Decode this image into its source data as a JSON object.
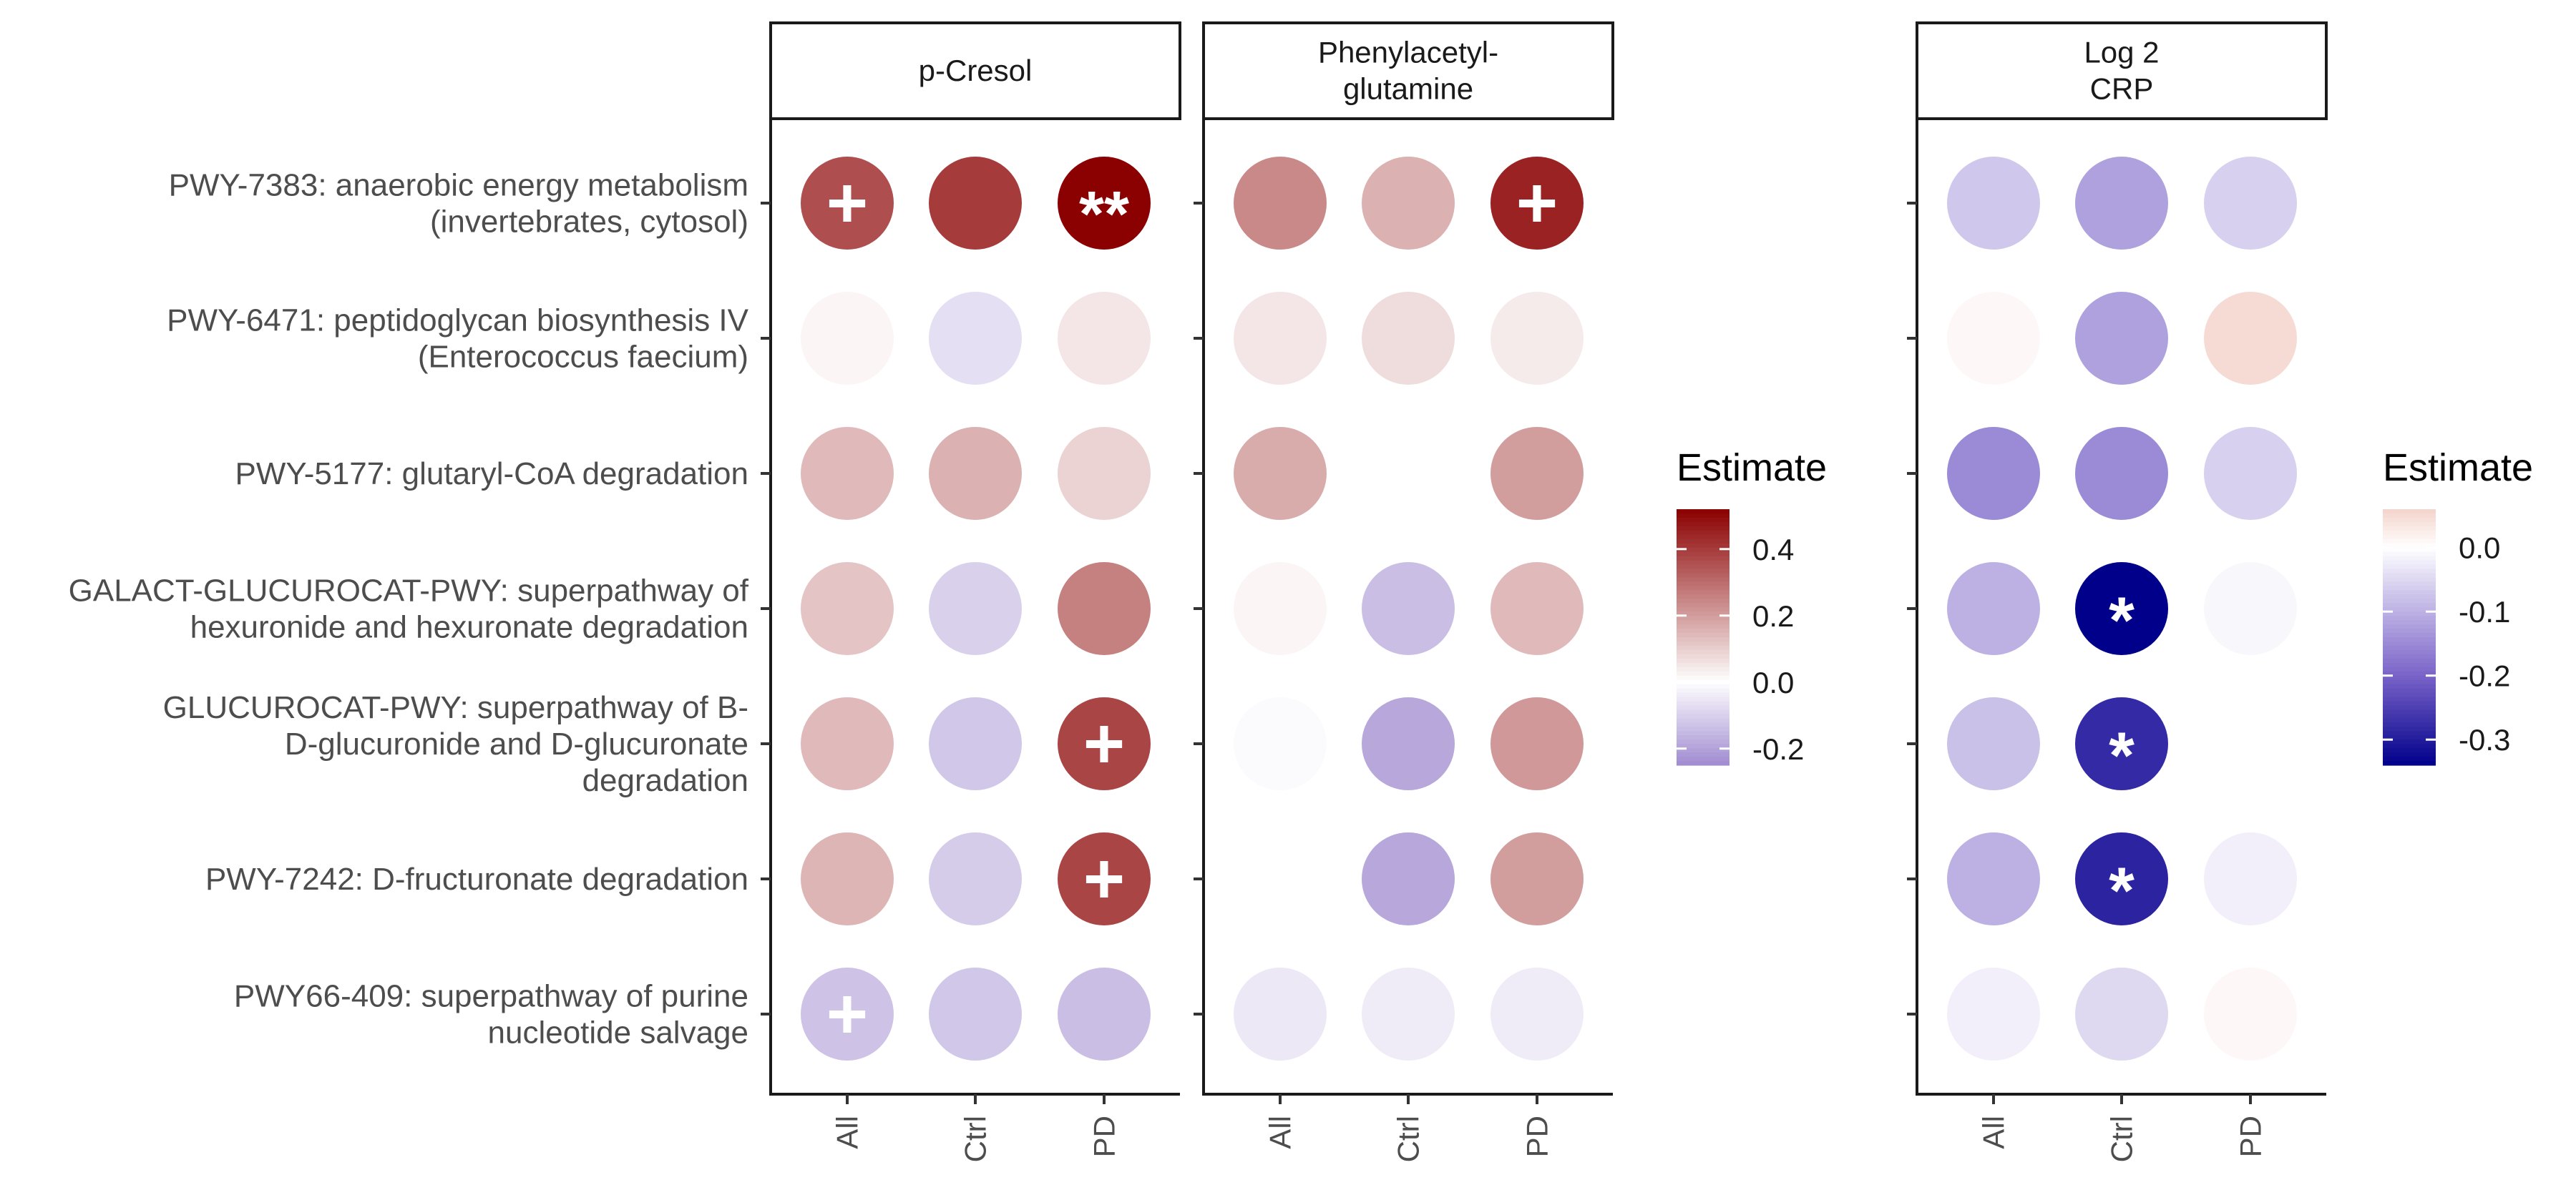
{
  "chart_data": {
    "type": "dot-matrix",
    "rows": [
      [
        "PWY-7383: anaerobic energy metabolism",
        "(invertebrates, cytosol)"
      ],
      [
        "PWY-6471: peptidoglycan biosynthesis IV",
        "(Enterococcus faecium)"
      ],
      [
        "PWY-5177: glutaryl-CoA degradation"
      ],
      [
        "GALACT-GLUCUROCAT-PWY: superpathway of",
        "hexuronide and hexuronate degradation"
      ],
      [
        "GLUCUROCAT-PWY: superpathway of B-",
        "D-glucuronide and D-glucuronate",
        "degradation"
      ],
      [
        "PWY-7242: D-fructuronate degradation"
      ],
      [
        "PWY66-409: superpathway of purine",
        "nucleotide salvage"
      ]
    ],
    "groups": [
      "All",
      "Ctrl",
      "PD"
    ],
    "panels": [
      {
        "title": [
          "p-Cresol"
        ],
        "values": [
          [
            0.36,
            0.4,
            0.55
          ],
          [
            0.02,
            -0.07,
            0.05
          ],
          [
            0.14,
            0.16,
            0.09
          ],
          [
            0.12,
            -0.1,
            0.26
          ],
          [
            0.14,
            -0.12,
            0.38
          ],
          [
            0.15,
            -0.11,
            0.38
          ],
          [
            -0.13,
            -0.12,
            -0.14
          ]
        ],
        "labels": [
          [
            "+",
            "",
            "**"
          ],
          [
            "",
            "",
            ""
          ],
          [
            "",
            "",
            ""
          ],
          [
            "",
            "",
            ""
          ],
          [
            "",
            "",
            "+"
          ],
          [
            "",
            "",
            "+"
          ],
          [
            "+",
            "",
            ""
          ]
        ]
      },
      {
        "title": [
          "Phenylacetyl-",
          "glutamine"
        ],
        "values": [
          [
            0.24,
            0.16,
            0.45
          ],
          [
            0.05,
            0.07,
            0.04
          ],
          [
            0.17,
            0.0,
            0.2
          ],
          [
            0.02,
            -0.14,
            0.14
          ],
          [
            -0.01,
            -0.19,
            0.21
          ],
          [
            0.0,
            -0.19,
            0.2
          ],
          [
            -0.05,
            -0.04,
            -0.04
          ]
        ],
        "labels": [
          [
            "",
            "",
            "+"
          ],
          [
            "",
            "",
            ""
          ],
          [
            "",
            "",
            ""
          ],
          [
            "",
            "",
            ""
          ],
          [
            "",
            "",
            ""
          ],
          [
            "",
            "",
            ""
          ],
          [
            "",
            "",
            ""
          ]
        ]
      },
      {
        "title": [
          "Log 2",
          "CRP"
        ],
        "values": [
          [
            -0.07,
            -0.12,
            -0.06
          ],
          [
            0.01,
            -0.12,
            0.05
          ],
          [
            -0.15,
            -0.15,
            -0.06
          ],
          [
            -0.1,
            -0.34,
            -0.01
          ],
          [
            -0.08,
            -0.28,
            0.0
          ],
          [
            -0.1,
            -0.29,
            -0.02
          ],
          [
            -0.02,
            -0.05,
            0.01
          ]
        ],
        "labels": [
          [
            "",
            "",
            ""
          ],
          [
            "",
            "",
            ""
          ],
          [
            "",
            "",
            ""
          ],
          [
            "",
            "*",
            ""
          ],
          [
            "",
            "*",
            ""
          ],
          [
            "",
            "*",
            ""
          ],
          [
            "",
            "",
            ""
          ]
        ]
      }
    ],
    "legends": [
      {
        "title": "Estimate",
        "panels": [
          0,
          1
        ],
        "range": [
          -0.25,
          0.52
        ],
        "ticks": [
          0.4,
          0.2,
          0.0,
          -0.2
        ],
        "tick_labels": [
          "0.4",
          "0.2",
          "0.0",
          "-0.2"
        ],
        "colors": [
          [
            -0.25,
            "#a08bd0"
          ],
          [
            0.0,
            "#ffffff"
          ],
          [
            0.52,
            "#8b0000"
          ]
        ]
      },
      {
        "title": "Estimate",
        "panels": [
          2
        ],
        "range": [
          -0.34,
          0.06
        ],
        "ticks": [
          0.0,
          -0.1,
          -0.2,
          -0.3
        ],
        "tick_labels": [
          "0.0",
          "-0.1",
          "-0.2",
          "-0.3"
        ],
        "colors": [
          [
            -0.34,
            "#00008b"
          ],
          [
            -0.2,
            "#7a63c8"
          ],
          [
            0.0,
            "#ffffff"
          ],
          [
            0.06,
            "#f4d4cc"
          ]
        ]
      }
    ]
  }
}
